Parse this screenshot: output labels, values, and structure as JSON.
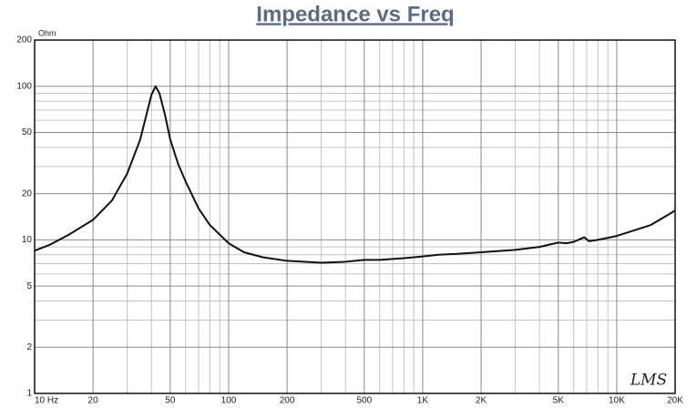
{
  "chart_data": {
    "type": "line",
    "title": "Impedance vs Freq",
    "y_unit": "Ohm",
    "watermark": "LMS",
    "log_x": true,
    "log_y": true,
    "grid": true,
    "color": "#111111",
    "x": [
      10,
      12,
      15,
      20,
      25,
      30,
      35,
      38,
      40,
      42,
      44,
      47,
      50,
      55,
      60,
      70,
      80,
      100,
      120,
      150,
      200,
      300,
      400,
      500,
      600,
      800,
      1000,
      1200,
      1500,
      2000,
      3000,
      4000,
      5000,
      5500,
      6000,
      6800,
      7200,
      8000,
      10000,
      15000,
      20000
    ],
    "values": [
      8.5,
      9.3,
      10.8,
      13.5,
      18,
      27,
      45,
      68,
      88,
      100,
      90,
      65,
      45,
      31,
      24,
      16,
      12.5,
      9.5,
      8.3,
      7.7,
      7.3,
      7.1,
      7.2,
      7.4,
      7.4,
      7.6,
      7.8,
      8.0,
      8.1,
      8.3,
      8.6,
      9.0,
      9.6,
      9.5,
      9.7,
      10.4,
      9.8,
      10.0,
      10.6,
      12.5,
      15.5
    ],
    "xlim": [
      10,
      20000
    ],
    "ylim": [
      1,
      200
    ],
    "xticks": [
      {
        "value": 10,
        "label": "10  Hz"
      },
      20,
      50,
      100,
      200,
      500,
      {
        "value": 1000,
        "label": "1K"
      },
      {
        "value": 2000,
        "label": "2K"
      },
      {
        "value": 5000,
        "label": "5K"
      },
      {
        "value": 10000,
        "label": "10K"
      },
      {
        "value": 20000,
        "label": "20K"
      }
    ],
    "yticks": [
      1,
      2,
      5,
      10,
      20,
      50,
      100,
      200
    ],
    "xminorticks": [
      30,
      40,
      60,
      70,
      80,
      90,
      300,
      400,
      600,
      700,
      800,
      900,
      3000,
      4000,
      6000,
      7000,
      8000,
      9000
    ],
    "yminorticks": [
      3,
      4,
      6,
      7,
      8,
      9,
      30,
      40,
      60,
      70,
      80,
      90
    ]
  }
}
